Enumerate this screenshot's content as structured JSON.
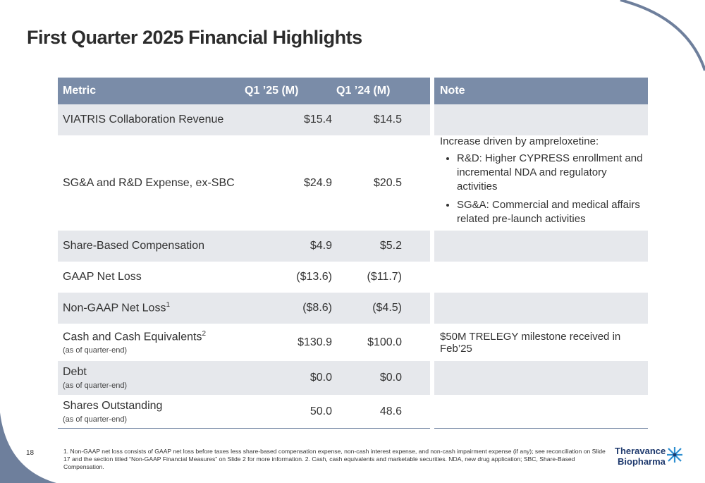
{
  "title": "First Quarter 2025 Financial Highlights",
  "table": {
    "headers": {
      "metric": "Metric",
      "q25": "Q1 ’25 (M)",
      "q24": "Q1 ’24 (M)",
      "note": "Note"
    },
    "rows": [
      {
        "metric": "VIATRIS Collaboration Revenue",
        "q25": "$15.4",
        "q24": "$14.5",
        "note": ""
      },
      {
        "metric": "SG&A and R&D Expense, ex-SBC",
        "q25": "$24.9",
        "q24": "$20.5",
        "note_head": "Increase driven by ampreloxetine:",
        "note_bullets": [
          "R&D: Higher CYPRESS enrollment and incremental NDA and regulatory activities",
          "SG&A: Commercial and medical affairs related pre-launch activities"
        ]
      },
      {
        "metric": "Share-Based Compensation",
        "q25": "$4.9",
        "q24": "$5.2",
        "note": ""
      },
      {
        "metric": "GAAP Net Loss",
        "q25": "($13.6)",
        "q24": "($11.7)",
        "note": ""
      },
      {
        "metric": "Non-GAAP Net Loss",
        "sup": "1",
        "q25": "($8.6)",
        "q24": "($4.5)",
        "note": ""
      },
      {
        "metric": "Cash and Cash Equivalents",
        "sup": "2",
        "sub": "(as of quarter-end)",
        "q25": "$130.9",
        "q24": "$100.0",
        "note": "$50M TRELEGY milestone received in Feb’25"
      },
      {
        "metric": "Debt",
        "sub": "(as of quarter-end)",
        "q25": "$0.0",
        "q24": "$0.0",
        "note": ""
      },
      {
        "metric": "Shares Outstanding",
        "sub": "(as of quarter-end)",
        "q25": "50.0",
        "q24": "48.6",
        "note": ""
      }
    ]
  },
  "page_number": "18",
  "footnote": "1. Non-GAAP net loss consists of GAAP net loss before taxes less share-based compensation expense, non-cash interest expense, and non-cash impairment expense (if any); see reconciliation on Slide 17 and the section titled “Non-GAAP Financial Measures” on Slide 2 for more information. 2. Cash, cash equivalents and marketable securities. NDA, new drug application; SBC, Share-Based Compensation.",
  "logo": {
    "line1": "Theravance",
    "line2": "Biopharma"
  },
  "colors": {
    "header": "#7a8ca8",
    "shade": "#e6e8ec",
    "decor": "#6e7f9c",
    "logo": "#1f3a6e",
    "logo_accent": "#2e8fd1"
  }
}
